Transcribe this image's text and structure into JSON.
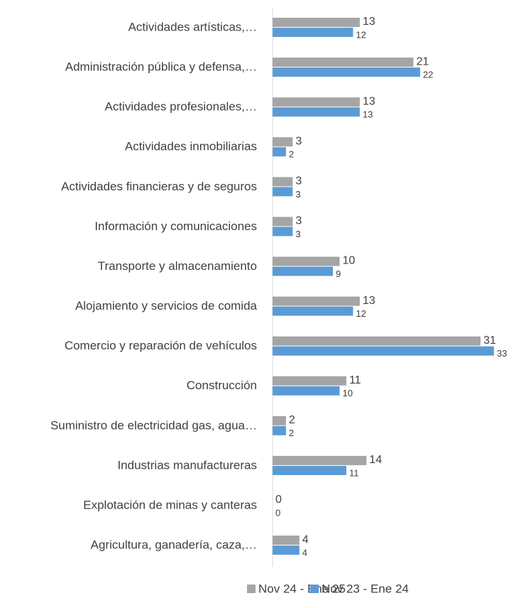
{
  "chart_data": {
    "type": "bar",
    "orientation": "horizontal",
    "categories": [
      "Actividades artísticas,…",
      "Administración pública y defensa,…",
      "Actividades profesionales,…",
      "Actividades inmobiliarias",
      "Actividades financieras y de seguros",
      "Información y comunicaciones",
      "Transporte y almacenamiento",
      "Alojamiento y servicios de comida",
      "Comercio y reparación de vehículos",
      "Construcción",
      "Suministro de electricidad gas, agua…",
      "Industrias manufactureras",
      "Explotación de minas y canteras",
      "Agricultura, ganadería, caza,…"
    ],
    "series": [
      {
        "name": "Nov 24 - Ene 25",
        "color": "#a5a5a5",
        "values": [
          13,
          21,
          13,
          3,
          3,
          3,
          10,
          13,
          31,
          11,
          2,
          14,
          0,
          4
        ]
      },
      {
        "name": "Nov 23 - Ene 24",
        "color": "#5b9bd5",
        "values": [
          12,
          22,
          13,
          2,
          3,
          3,
          9,
          12,
          33,
          10,
          2,
          11,
          0,
          4
        ]
      }
    ],
    "legend": "bottom"
  }
}
